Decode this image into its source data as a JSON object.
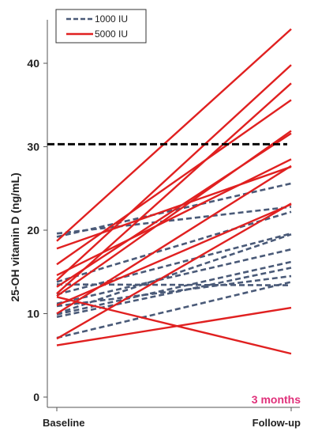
{
  "chart_data": {
    "type": "line",
    "xlabel": "",
    "ylabel": "25-OH vitamin D (ng/mL)",
    "categories": [
      "Baseline",
      "Follow-up"
    ],
    "ylim": [
      0,
      45
    ],
    "yticks": [
      0,
      10,
      20,
      30,
      40
    ],
    "grid": false,
    "legend_position": "top-left",
    "legend": [
      {
        "label": "1000 IU",
        "style": "dashed",
        "color": "#4a5a78"
      },
      {
        "label": "5000 IU",
        "style": "solid",
        "color": "#e02020"
      }
    ],
    "reference_line": {
      "value": 30.3,
      "style": "dashed",
      "color": "#000000"
    },
    "annotation": {
      "text": "3 months",
      "color": "#e0307a"
    },
    "groups": [
      {
        "label": "1000 IU",
        "color": "#4a5a78",
        "style": "dashed",
        "lines": [
          [
            19.6,
            22.8
          ],
          [
            19.2,
            25.6
          ],
          [
            13.8,
            22.2
          ],
          [
            13.5,
            13.4
          ],
          [
            12.3,
            19.6
          ],
          [
            11.2,
            17.7
          ],
          [
            10.9,
            14.5
          ],
          [
            10.0,
            19.5
          ],
          [
            9.9,
            16.2
          ],
          [
            9.6,
            15.5
          ],
          [
            7.1,
            13.8
          ]
        ]
      },
      {
        "label": "5000 IU",
        "color": "#e02020",
        "style": "solid",
        "lines": [
          [
            18.7,
            44.1
          ],
          [
            17.8,
            27.6
          ],
          [
            15.9,
            35.6
          ],
          [
            14.6,
            28.5
          ],
          [
            14.0,
            39.8
          ],
          [
            13.2,
            31.6
          ],
          [
            12.4,
            37.6
          ],
          [
            12.1,
            31.9
          ],
          [
            12.0,
            5.2
          ],
          [
            11.0,
            23.1
          ],
          [
            10.0,
            27.7
          ],
          [
            7.0,
            23.2
          ],
          [
            6.2,
            10.7
          ]
        ]
      }
    ]
  }
}
